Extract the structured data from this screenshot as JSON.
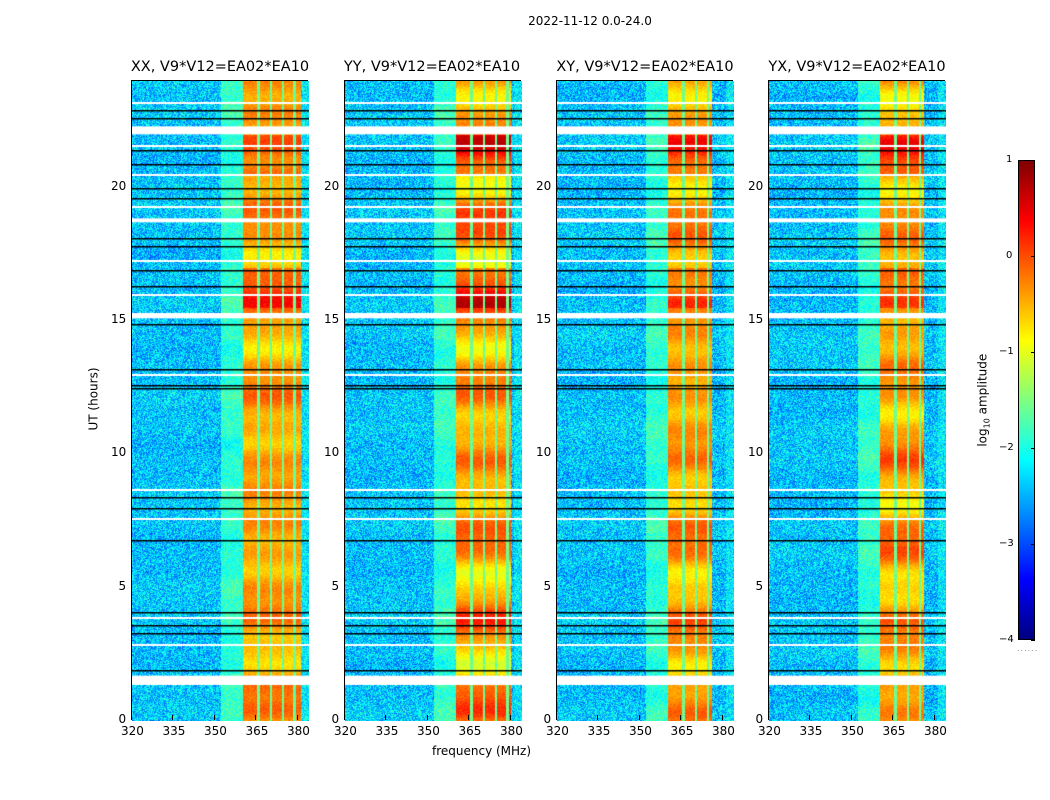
{
  "figure": {
    "suptitle": "2022-11-12 0.0-24.0",
    "xlabel": "frequency (MHz)",
    "ylabel": "UT (hours)"
  },
  "chart_data": {
    "type": "heatmap",
    "title": "2022-11-12 0.0-24.0",
    "xlabel": "frequency (MHz)",
    "ylabel": "UT (hours)",
    "xlim": [
      320,
      384
    ],
    "ylim": [
      0,
      24
    ],
    "xticks": [
      "320",
      "335",
      "350",
      "365",
      "380"
    ],
    "yticks": [
      "0",
      "5",
      "10",
      "15",
      "20"
    ],
    "colormap": "jet",
    "panels": [
      {
        "title": "XX, V9*V12=EA02*EA10",
        "polarization": "XX",
        "baseline": "V9*V12=EA02*EA10",
        "strong_band_mhz": [
          360,
          381
        ],
        "strong_level": 0.15
      },
      {
        "title": "YY, V9*V12=EA02*EA10",
        "polarization": "YY",
        "baseline": "V9*V12=EA02*EA10",
        "strong_band_mhz": [
          360,
          380
        ],
        "strong_level": 0.4
      },
      {
        "title": "XY, V9*V12=EA02*EA10",
        "polarization": "XY",
        "baseline": "V9*V12=EA02*EA10",
        "strong_band_mhz": [
          360,
          376
        ],
        "strong_level": 0.2
      },
      {
        "title": "YX, V9*V12=EA02*EA10",
        "polarization": "YX",
        "baseline": "V9*V12=EA02*EA10",
        "strong_band_mhz": [
          360,
          376
        ],
        "strong_level": 0.25
      }
    ],
    "rfi_channel_gaps_mhz": [
      365.5,
      370,
      374.5,
      378.5
    ],
    "background_level_log10": -2.4,
    "flagged_time_ranges_hours": [
      [
        1.35,
        1.7
      ],
      [
        15.1,
        15.3
      ],
      [
        18.7,
        18.85
      ],
      [
        22.0,
        22.3
      ]
    ],
    "dropout_lines_hours": [
      1.9,
      2.9,
      3.3,
      3.6,
      3.9,
      4.1,
      6.8,
      7.6,
      8.0,
      8.4,
      8.7,
      12.5,
      12.6,
      13.0,
      13.2,
      14.9,
      16.0,
      16.3,
      16.9,
      17.3,
      17.8,
      18.1,
      19.3,
      19.6,
      20.0,
      20.5,
      20.9,
      21.4,
      21.6,
      22.6,
      22.9,
      23.2
    ],
    "colorbar": {
      "label": "log10 amplitude",
      "range": [
        -4,
        1
      ],
      "ticks": [
        "1",
        "0",
        "−1",
        "−2",
        "−3",
        "−4"
      ]
    }
  }
}
